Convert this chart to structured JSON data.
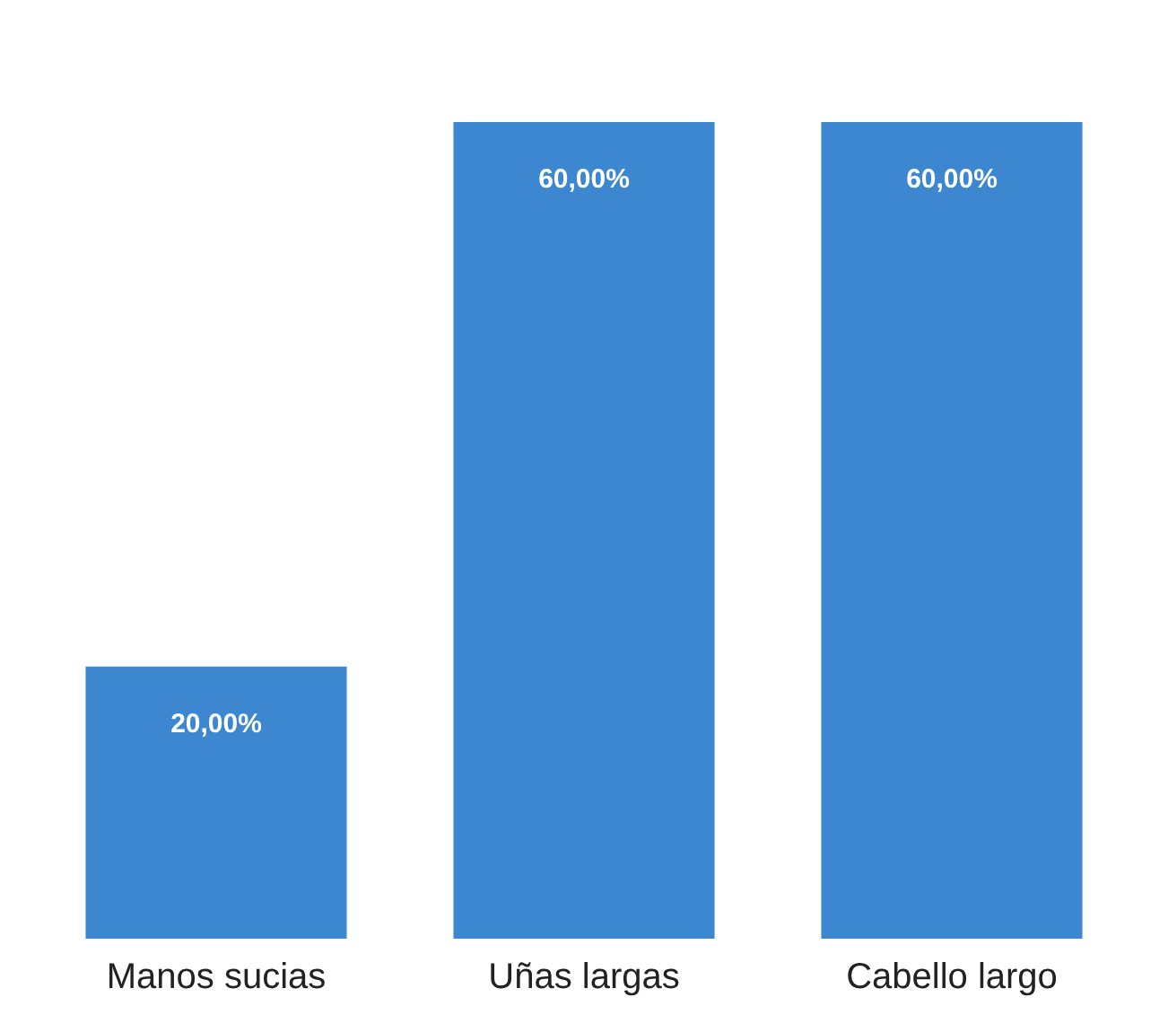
{
  "chart_data": {
    "type": "bar",
    "categories": [
      "Manos sucias",
      "Uñas largas",
      "Cabello largo"
    ],
    "values": [
      20,
      60,
      60
    ],
    "value_labels": [
      "20,00%",
      "60,00%",
      "60,00%"
    ],
    "color": "#3d86d0",
    "grid": false,
    "legend": false
  }
}
